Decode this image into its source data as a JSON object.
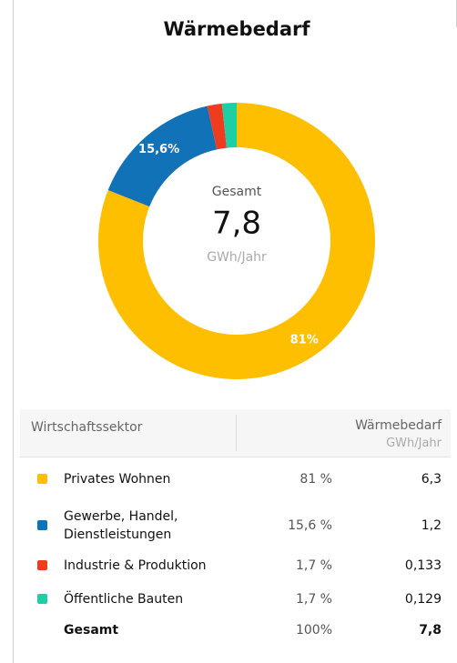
{
  "chart_data": {
    "type": "donut",
    "title": "Wärmebedarf",
    "categories": [
      "Privates Wohnen",
      "Gewerbe, Handel, Dienstleistungen",
      "Industrie & Produktion",
      "Öffentliche Bauten"
    ],
    "values": [
      81,
      15.6,
      1.7,
      1.7
    ],
    "value_labels": [
      "81%",
      "15,6%",
      null,
      null
    ],
    "colors": [
      "#fdbf00",
      "#1272b8",
      "#f03c1e",
      "#1ecfa6"
    ],
    "center": {
      "label": "Gesamt",
      "value": "7,8",
      "unit": "GWh/Jahr"
    }
  },
  "table": {
    "header": {
      "sector": "Wirtschaftssektor",
      "demand": "Wärmebedarf",
      "unit": "GWh/Jahr"
    },
    "rows": [
      {
        "share": "81 %",
        "value": "6,3"
      },
      {
        "share": "15,6 %",
        "value": "1,2"
      },
      {
        "share": "1,7 %",
        "value": "0,133"
      },
      {
        "share": "1,7 %",
        "value": "0,129"
      }
    ],
    "total": {
      "name": "Gesamt",
      "share": "100%",
      "value": "7,8"
    }
  }
}
